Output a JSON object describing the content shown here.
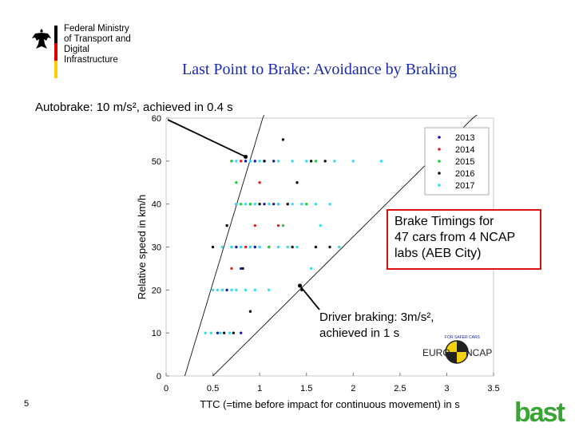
{
  "header": {
    "ministry_line1": "Federal Ministry",
    "ministry_line2": "of Transport and",
    "ministry_line3": "Digital Infrastructure",
    "flag_colors": [
      "#000000",
      "#dd0000",
      "#ffcc00"
    ]
  },
  "slide": {
    "title": "Last Point to Brake: Avoidance by Braking",
    "page_number": "5",
    "title_color": "#1a2aa8"
  },
  "annotations": {
    "autobrake": "Autobrake: 10 m/s², achieved in 0.4 s",
    "brake_timings": [
      "Brake Timings for",
      "47 cars from 4 NCAP",
      "labs (AEB City)"
    ],
    "driver_braking": [
      "Driver braking: 3m/s²,",
      "achieved in 1 s"
    ]
  },
  "logos": {
    "euroncap_text_left": "EURO",
    "euroncap_text_right": "NCAP",
    "euroncap_ring_text": "FOR SAFER CARS",
    "bast": "bast"
  },
  "chart_data": {
    "type": "scatter",
    "xlabel": "TTC (=time before impact for continuous movement) in s",
    "ylabel": "Relative speed in km/h",
    "xlim": [
      0,
      3.5
    ],
    "ylim": [
      0,
      60
    ],
    "xticks": [
      "0",
      "0.5",
      "1",
      "1.5",
      "2",
      "2.5",
      "3",
      "3.5"
    ],
    "yticks": [
      "0",
      "10",
      "20",
      "30",
      "40",
      "50",
      "60"
    ],
    "legend_position": "top-right",
    "series": [
      {
        "name": "2013",
        "color": "#1a1aa8",
        "points": [
          [
            0.55,
            10
          ],
          [
            0.8,
            10
          ],
          [
            0.65,
            20
          ],
          [
            0.8,
            25
          ],
          [
            0.75,
            30
          ],
          [
            0.95,
            30
          ],
          [
            0.9,
            40
          ],
          [
            1.05,
            40
          ],
          [
            1.15,
            40
          ],
          [
            0.85,
            50
          ],
          [
            0.95,
            50
          ],
          [
            1.05,
            50
          ],
          [
            1.15,
            50
          ]
        ]
      },
      {
        "name": "2014",
        "color": "#dd2222",
        "points": [
          [
            0.7,
            25
          ],
          [
            0.85,
            30
          ],
          [
            0.95,
            35
          ],
          [
            1.2,
            35
          ],
          [
            1.1,
            30
          ],
          [
            0.7,
            50
          ],
          [
            0.8,
            50
          ],
          [
            1.3,
            40
          ],
          [
            1.0,
            45
          ]
        ]
      },
      {
        "name": "2015",
        "color": "#22cc44",
        "points": [
          [
            0.6,
            20
          ],
          [
            0.7,
            30
          ],
          [
            0.8,
            40
          ],
          [
            0.7,
            50
          ],
          [
            0.9,
            40
          ],
          [
            1.1,
            30
          ],
          [
            0.75,
            45
          ],
          [
            1.25,
            35
          ],
          [
            1.5,
            40
          ],
          [
            1.6,
            50
          ]
        ]
      },
      {
        "name": "2016",
        "color": "#111111",
        "points": [
          [
            0.62,
            10
          ],
          [
            0.72,
            10
          ],
          [
            0.9,
            15
          ],
          [
            0.5,
            30
          ],
          [
            0.65,
            35
          ],
          [
            0.75,
            40
          ],
          [
            0.82,
            25
          ],
          [
            1.0,
            40
          ],
          [
            1.2,
            40
          ],
          [
            1.3,
            40
          ],
          [
            1.4,
            45
          ],
          [
            1.55,
            50
          ],
          [
            1.7,
            50
          ],
          [
            1.75,
            30
          ],
          [
            1.6,
            30
          ],
          [
            1.35,
            30
          ],
          [
            1.45,
            20
          ],
          [
            1.05,
            50
          ],
          [
            1.25,
            55
          ]
        ]
      },
      {
        "name": "2017",
        "color": "#33ddee",
        "points": [
          [
            0.42,
            10
          ],
          [
            0.48,
            10
          ],
          [
            0.58,
            10
          ],
          [
            0.68,
            10
          ],
          [
            0.5,
            20
          ],
          [
            0.55,
            20
          ],
          [
            0.6,
            20
          ],
          [
            0.7,
            20
          ],
          [
            0.75,
            20
          ],
          [
            0.85,
            20
          ],
          [
            0.95,
            20
          ],
          [
            1.1,
            20
          ],
          [
            0.6,
            30
          ],
          [
            0.7,
            30
          ],
          [
            0.8,
            30
          ],
          [
            0.9,
            30
          ],
          [
            1.0,
            30
          ],
          [
            1.2,
            30
          ],
          [
            1.3,
            30
          ],
          [
            1.4,
            30
          ],
          [
            0.75,
            40
          ],
          [
            0.85,
            40
          ],
          [
            0.95,
            40
          ],
          [
            1.1,
            40
          ],
          [
            1.2,
            40
          ],
          [
            1.35,
            40
          ],
          [
            1.45,
            40
          ],
          [
            1.6,
            40
          ],
          [
            1.75,
            40
          ],
          [
            0.75,
            50
          ],
          [
            0.9,
            50
          ],
          [
            1.0,
            50
          ],
          [
            1.2,
            50
          ],
          [
            1.35,
            50
          ],
          [
            1.5,
            50
          ],
          [
            1.8,
            50
          ],
          [
            2.0,
            50
          ],
          [
            2.3,
            50
          ],
          [
            1.65,
            35
          ],
          [
            1.85,
            30
          ],
          [
            1.55,
            25
          ]
        ]
      }
    ],
    "curves": [
      {
        "label": "autobrake",
        "decel_ms2": 10,
        "delay_s": 0.4
      },
      {
        "label": "driver",
        "decel_ms2": 3,
        "delay_s": 1
      }
    ]
  }
}
